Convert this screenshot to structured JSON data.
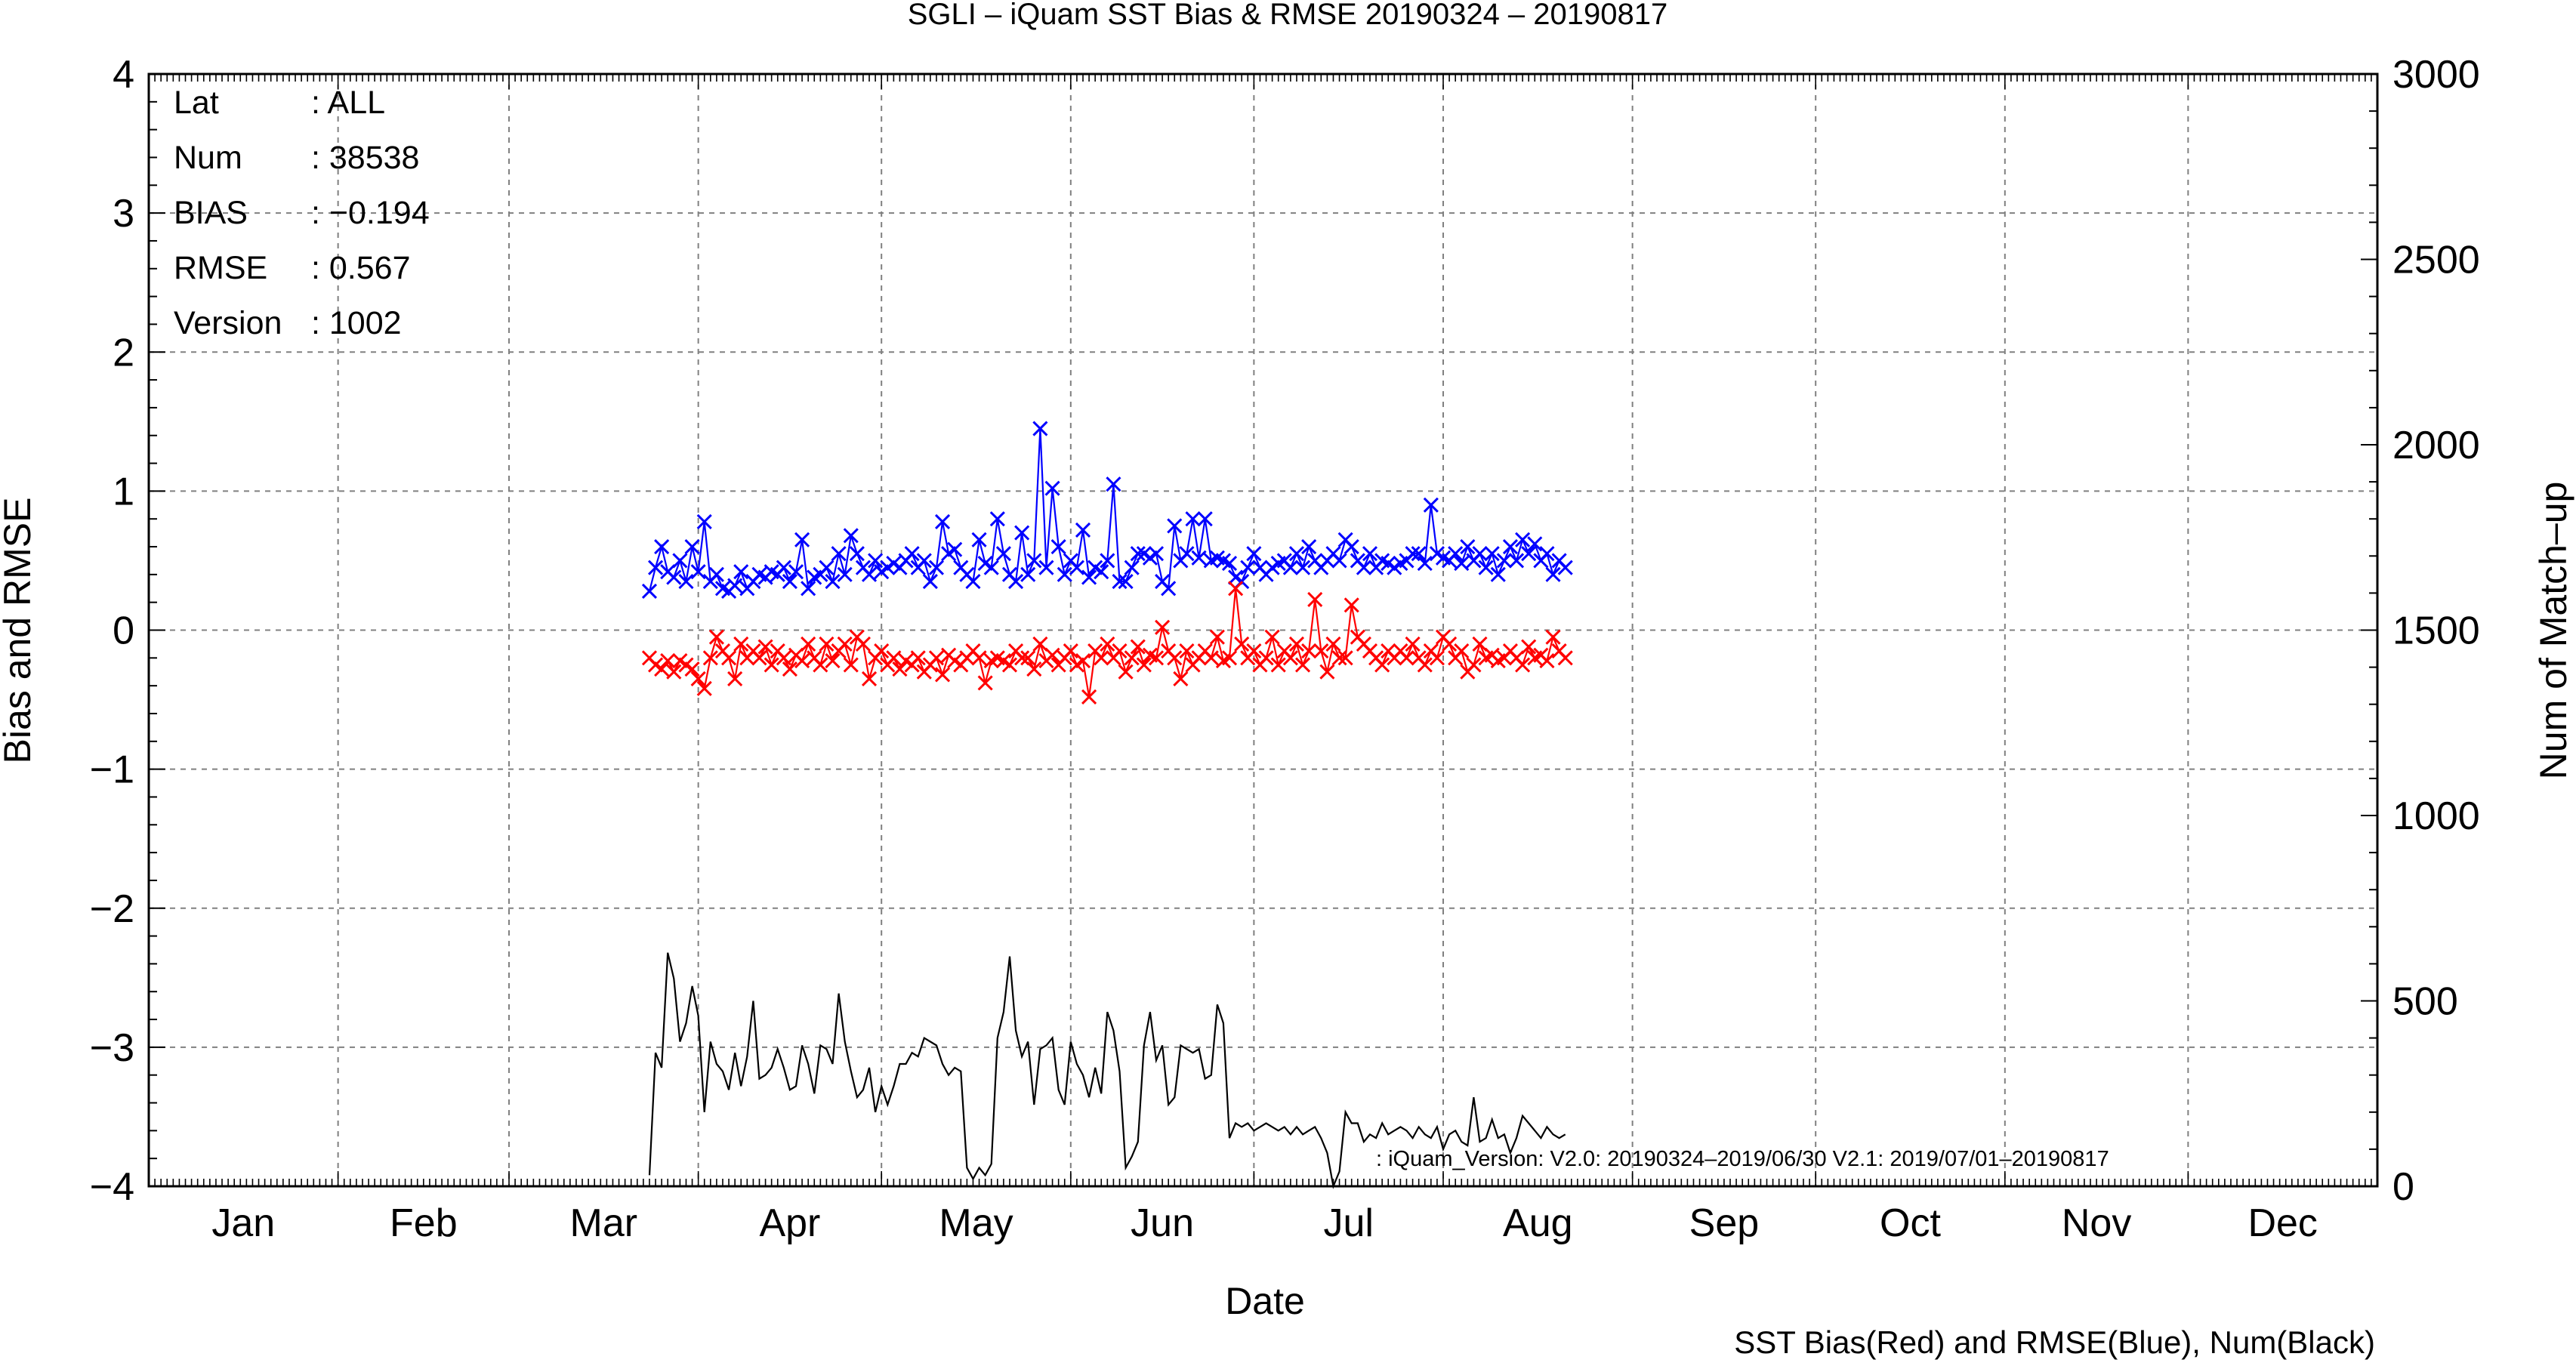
{
  "chart_data": {
    "type": "line",
    "title": "SGLI – iQuam  SST Bias & RMSE 20190324 – 20190817",
    "xlabel": "Date",
    "ylabel": "Bias and RMSE",
    "y2label": "Num of Match–up",
    "legend_note": "SST Bias(Red) and RMSE(Blue), Num(Black)",
    "annotation": ": iQuam_Version: V2.0: 20190324–2019/06/30 V2.1: 2019/07/01–20190817",
    "grid": true,
    "xlim": [
      0,
      365
    ],
    "ylim": [
      -4,
      4
    ],
    "y2lim": [
      0,
      3000
    ],
    "x_unit": "day of year 2019",
    "months": [
      "Jan",
      "Feb",
      "Mar",
      "Apr",
      "May",
      "Jun",
      "Jul",
      "Aug",
      "Sep",
      "Oct",
      "Nov",
      "Dec"
    ],
    "month_starts": [
      0,
      31,
      59,
      90,
      120,
      151,
      181,
      212,
      243,
      273,
      304,
      334
    ],
    "yticks": [
      "4",
      "3",
      "2",
      "1",
      "0",
      "−1",
      "−2",
      "−3",
      "−4"
    ],
    "y2ticks": [
      "3000",
      "2500",
      "2000",
      "1500",
      "1000",
      "500",
      "0"
    ],
    "stats": [
      {
        "label": "Lat",
        "value": ": ALL"
      },
      {
        "label": "Num",
        "value": ": 38538"
      },
      {
        "label": "BIAS",
        "value": ": −0.194"
      },
      {
        "label": "RMSE",
        "value": ": 0.567"
      },
      {
        "label": "Version",
        "value": ": 1002"
      }
    ],
    "series": [
      {
        "name": "RMSE",
        "color": "#0000ff",
        "axis": "left",
        "marker": "x",
        "x": [
          82,
          83,
          84,
          85,
          86,
          87,
          88,
          89,
          90,
          91,
          92,
          93,
          94,
          95,
          96,
          97,
          98,
          99,
          100,
          101,
          102,
          103,
          104,
          105,
          106,
          107,
          108,
          109,
          110,
          111,
          112,
          113,
          114,
          115,
          116,
          117,
          118,
          119,
          120,
          121,
          122,
          123,
          124,
          125,
          126,
          127,
          128,
          129,
          130,
          131,
          132,
          133,
          134,
          135,
          136,
          137,
          138,
          139,
          140,
          141,
          142,
          143,
          144,
          145,
          146,
          147,
          148,
          149,
          150,
          151,
          152,
          153,
          154,
          155,
          156,
          157,
          158,
          159,
          160,
          161,
          162,
          163,
          164,
          165,
          166,
          167,
          168,
          169,
          170,
          171,
          172,
          173,
          174,
          175,
          176,
          177,
          178,
          179,
          180,
          181,
          182,
          183,
          184,
          185,
          186,
          187,
          188,
          189,
          190,
          191,
          192,
          193,
          194,
          195,
          196,
          197,
          198,
          199,
          200,
          201,
          202,
          203,
          204,
          205,
          206,
          207,
          208,
          209,
          210,
          211,
          212,
          213,
          214,
          215,
          216,
          217,
          218,
          219,
          220,
          221,
          222,
          223,
          224,
          225,
          226,
          227,
          228,
          229,
          230,
          231,
          232
        ],
        "y": [
          0.28,
          0.45,
          0.6,
          0.42,
          0.38,
          0.5,
          0.35,
          0.6,
          0.42,
          0.78,
          0.35,
          0.4,
          0.3,
          0.28,
          0.32,
          0.42,
          0.3,
          0.35,
          0.4,
          0.38,
          0.42,
          0.4,
          0.45,
          0.35,
          0.42,
          0.65,
          0.3,
          0.38,
          0.4,
          0.45,
          0.35,
          0.55,
          0.4,
          0.68,
          0.55,
          0.45,
          0.4,
          0.5,
          0.42,
          0.45,
          0.48,
          0.45,
          0.5,
          0.55,
          0.45,
          0.5,
          0.35,
          0.45,
          0.78,
          0.55,
          0.58,
          0.45,
          0.4,
          0.35,
          0.65,
          0.48,
          0.45,
          0.8,
          0.55,
          0.4,
          0.35,
          0.7,
          0.4,
          0.5,
          1.45,
          0.45,
          1.02,
          0.6,
          0.4,
          0.5,
          0.45,
          0.72,
          0.38,
          0.45,
          0.42,
          0.5,
          1.05,
          0.35,
          0.35,
          0.45,
          0.55,
          0.55,
          0.52,
          0.55,
          0.35,
          0.3,
          0.75,
          0.5,
          0.55,
          0.8,
          0.52,
          0.8,
          0.5,
          0.52,
          0.5,
          0.48,
          0.38,
          0.35,
          0.45,
          0.55,
          0.45,
          0.4,
          0.45,
          0.48,
          0.5,
          0.45,
          0.55,
          0.45,
          0.6,
          0.5,
          0.45,
          0.5,
          0.55,
          0.5,
          0.65,
          0.6,
          0.5,
          0.45,
          0.55,
          0.45,
          0.5,
          0.48,
          0.45,
          0.48,
          0.5,
          0.55,
          0.55,
          0.48,
          0.9,
          0.55,
          0.52,
          0.5,
          0.55,
          0.48,
          0.6,
          0.5,
          0.55,
          0.45,
          0.55,
          0.4,
          0.5,
          0.6,
          0.5,
          0.65,
          0.55,
          0.62,
          0.5,
          0.55,
          0.4,
          0.5,
          0.45
        ]
      },
      {
        "name": "Bias",
        "color": "#ff0000",
        "axis": "left",
        "marker": "x",
        "x": [
          82,
          83,
          84,
          85,
          86,
          87,
          88,
          89,
          90,
          91,
          92,
          93,
          94,
          95,
          96,
          97,
          98,
          99,
          100,
          101,
          102,
          103,
          104,
          105,
          106,
          107,
          108,
          109,
          110,
          111,
          112,
          113,
          114,
          115,
          116,
          117,
          118,
          119,
          120,
          121,
          122,
          123,
          124,
          125,
          126,
          127,
          128,
          129,
          130,
          131,
          132,
          133,
          134,
          135,
          136,
          137,
          138,
          139,
          140,
          141,
          142,
          143,
          144,
          145,
          146,
          147,
          148,
          149,
          150,
          151,
          152,
          153,
          154,
          155,
          156,
          157,
          158,
          159,
          160,
          161,
          162,
          163,
          164,
          165,
          166,
          167,
          168,
          169,
          170,
          171,
          172,
          173,
          174,
          175,
          176,
          177,
          178,
          179,
          180,
          181,
          182,
          183,
          184,
          185,
          186,
          187,
          188,
          189,
          190,
          191,
          192,
          193,
          194,
          195,
          196,
          197,
          198,
          199,
          200,
          201,
          202,
          203,
          204,
          205,
          206,
          207,
          208,
          209,
          210,
          211,
          212,
          213,
          214,
          215,
          216,
          217,
          218,
          219,
          220,
          221,
          222,
          223,
          224,
          225,
          226,
          227,
          228,
          229,
          230,
          231,
          232
        ],
        "y": [
          -0.2,
          -0.25,
          -0.28,
          -0.22,
          -0.3,
          -0.22,
          -0.25,
          -0.28,
          -0.35,
          -0.42,
          -0.2,
          -0.05,
          -0.15,
          -0.2,
          -0.35,
          -0.1,
          -0.2,
          -0.15,
          -0.2,
          -0.12,
          -0.25,
          -0.15,
          -0.2,
          -0.28,
          -0.18,
          -0.22,
          -0.1,
          -0.2,
          -0.25,
          -0.1,
          -0.22,
          -0.15,
          -0.1,
          -0.25,
          -0.05,
          -0.1,
          -0.35,
          -0.2,
          -0.15,
          -0.25,
          -0.2,
          -0.28,
          -0.22,
          -0.25,
          -0.2,
          -0.3,
          -0.25,
          -0.2,
          -0.32,
          -0.18,
          -0.22,
          -0.25,
          -0.2,
          -0.15,
          -0.2,
          -0.38,
          -0.22,
          -0.2,
          -0.22,
          -0.25,
          -0.15,
          -0.2,
          -0.2,
          -0.28,
          -0.1,
          -0.22,
          -0.18,
          -0.25,
          -0.2,
          -0.15,
          -0.25,
          -0.22,
          -0.48,
          -0.15,
          -0.2,
          -0.1,
          -0.2,
          -0.15,
          -0.3,
          -0.2,
          -0.12,
          -0.25,
          -0.18,
          -0.2,
          0.02,
          -0.15,
          -0.2,
          -0.35,
          -0.15,
          -0.25,
          -0.2,
          -0.15,
          -0.2,
          -0.05,
          -0.22,
          -0.2,
          0.3,
          -0.1,
          -0.2,
          -0.15,
          -0.25,
          -0.2,
          -0.05,
          -0.25,
          -0.15,
          -0.2,
          -0.1,
          -0.25,
          -0.15,
          0.22,
          -0.15,
          -0.3,
          -0.1,
          -0.2,
          -0.2,
          0.18,
          -0.05,
          -0.1,
          -0.15,
          -0.2,
          -0.25,
          -0.15,
          -0.2,
          -0.15,
          -0.2,
          -0.1,
          -0.2,
          -0.25,
          -0.15,
          -0.2,
          -0.05,
          -0.1,
          -0.2,
          -0.15,
          -0.3,
          -0.25,
          -0.1,
          -0.2,
          -0.18,
          -0.22,
          -0.2,
          -0.15,
          -0.2,
          -0.25,
          -0.12,
          -0.2,
          -0.18,
          -0.22,
          -0.05,
          -0.15,
          -0.2
        ]
      },
      {
        "name": "Num",
        "color": "#000000",
        "axis": "right",
        "marker": "none",
        "x": [
          82,
          83,
          84,
          85,
          86,
          87,
          88,
          89,
          90,
          91,
          92,
          93,
          94,
          95,
          96,
          97,
          98,
          99,
          100,
          101,
          102,
          103,
          104,
          105,
          106,
          107,
          108,
          109,
          110,
          111,
          112,
          113,
          114,
          115,
          116,
          117,
          118,
          119,
          120,
          121,
          122,
          123,
          124,
          125,
          126,
          127,
          128,
          129,
          130,
          131,
          132,
          133,
          134,
          135,
          136,
          137,
          138,
          139,
          140,
          141,
          142,
          143,
          144,
          145,
          146,
          147,
          148,
          149,
          150,
          151,
          152,
          153,
          154,
          155,
          156,
          157,
          158,
          159,
          160,
          161,
          162,
          163,
          164,
          165,
          166,
          167,
          168,
          169,
          170,
          171,
          172,
          173,
          174,
          175,
          176,
          177,
          178,
          179,
          180,
          181,
          182,
          183,
          184,
          185,
          186,
          187,
          188,
          189,
          190,
          191,
          192,
          193,
          194,
          195,
          196,
          197,
          198,
          199,
          200,
          201,
          202,
          203,
          204,
          205,
          206,
          207,
          208,
          209,
          210,
          211,
          212,
          213,
          214,
          215,
          216,
          217,
          218,
          219,
          220,
          221,
          222,
          223,
          224,
          225,
          226,
          227,
          228,
          229,
          230,
          231,
          232
        ],
        "y": [
          30,
          360,
          320,
          630,
          560,
          390,
          440,
          540,
          460,
          200,
          390,
          330,
          310,
          260,
          360,
          270,
          350,
          500,
          290,
          300,
          320,
          370,
          320,
          260,
          270,
          380,
          330,
          250,
          380,
          370,
          330,
          520,
          390,
          310,
          240,
          260,
          320,
          200,
          270,
          220,
          270,
          330,
          330,
          360,
          350,
          400,
          390,
          380,
          330,
          300,
          320,
          310,
          50,
          20,
          50,
          30,
          60,
          400,
          470,
          620,
          420,
          350,
          390,
          220,
          370,
          380,
          400,
          260,
          220,
          390,
          330,
          300,
          240,
          320,
          250,
          470,
          420,
          310,
          50,
          80,
          120,
          380,
          470,
          340,
          380,
          220,
          240,
          380,
          370,
          360,
          370,
          290,
          300,
          490,
          440,
          130,
          170,
          160,
          170,
          150,
          160,
          170,
          160,
          150,
          160,
          140,
          160,
          140,
          150,
          160,
          130,
          90,
          0,
          40,
          200,
          170,
          170,
          120,
          140,
          130,
          170,
          140,
          150,
          160,
          150,
          130,
          160,
          140,
          130,
          160,
          100,
          140,
          150,
          120,
          110,
          240,
          120,
          130,
          180,
          130,
          140,
          90,
          130,
          190,
          170,
          150,
          130,
          160,
          140,
          130,
          140
        ]
      }
    ]
  }
}
